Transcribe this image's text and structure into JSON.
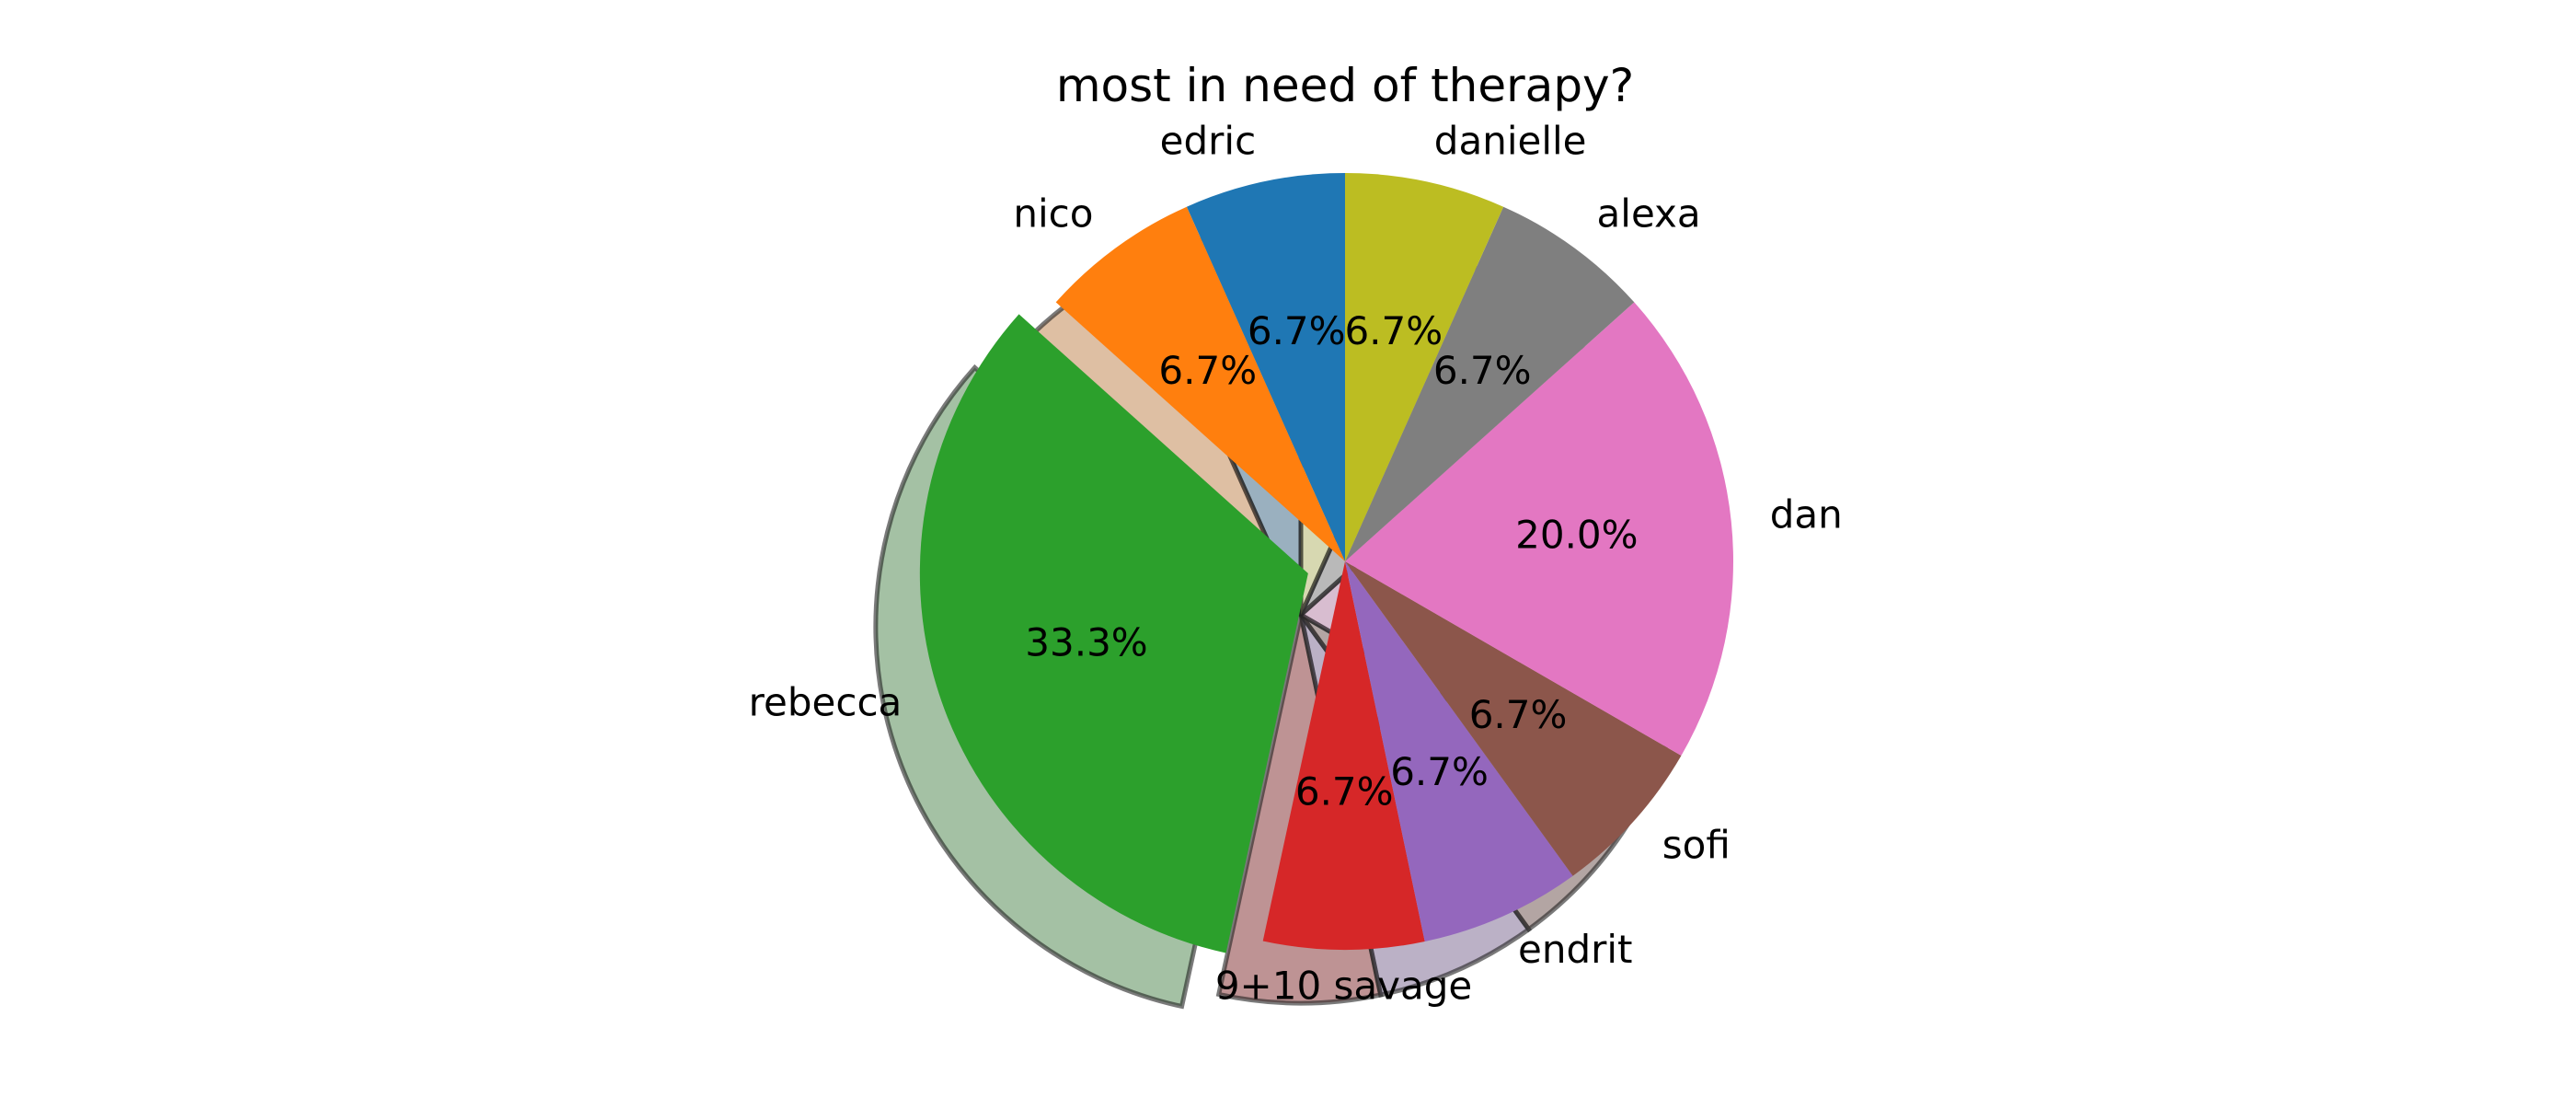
{
  "chart_data": {
    "type": "pie",
    "title": "most in need of therapy?",
    "categories": [
      "edric",
      "nico",
      "rebecca",
      "9+10 savage",
      "endrit",
      "sofi",
      "dan",
      "alexa",
      "danielle"
    ],
    "values": [
      6.7,
      6.7,
      33.3,
      6.7,
      6.7,
      6.7,
      20.0,
      6.7,
      6.7
    ],
    "value_labels": [
      "6.7%",
      "6.7%",
      "33.3%",
      "6.7%",
      "6.7%",
      "6.7%",
      "20.0%",
      "6.7%",
      "6.7%"
    ],
    "colors": [
      "#1f77b4",
      "#ff7f0e",
      "#2ca02c",
      "#d62728",
      "#9467bd",
      "#8c564b",
      "#e377c2",
      "#7f7f7f",
      "#bcbd22"
    ],
    "exploded": [
      "rebecca"
    ],
    "shadow": true,
    "start_angle_deg": 90,
    "direction": "counterclockwise",
    "legend": "none"
  }
}
